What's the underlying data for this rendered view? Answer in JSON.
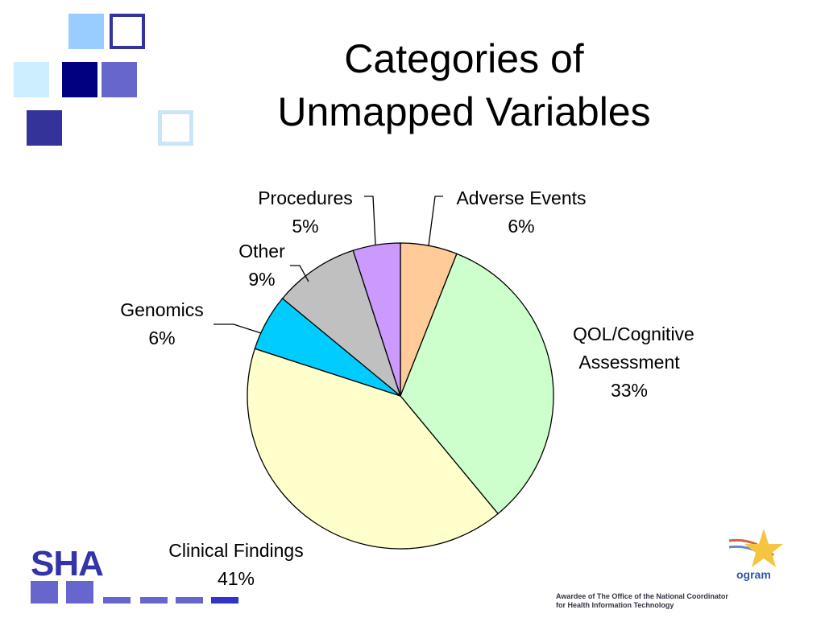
{
  "chart_data": {
    "type": "pie",
    "title": "Categories of Unmapped Variables",
    "categories": [
      "Adverse Events",
      "QOL/Cognitive Assessment",
      "Clinical Findings",
      "Genomics",
      "Other",
      "Procedures"
    ],
    "values": [
      6,
      33,
      41,
      6,
      9,
      5
    ],
    "value_labels": [
      "6%",
      "33%",
      "41%",
      "6%",
      "9%",
      "5%"
    ],
    "colors": [
      "#ffcc99",
      "#ccffcc",
      "#ffffcc",
      "#00ccff",
      "#c0c0c0",
      "#cc99ff"
    ]
  },
  "logo_left": "SHA",
  "logo_right": "ogram",
  "footer_note": "Awardee of The Office of the National Coordinator for Health Information Technology"
}
